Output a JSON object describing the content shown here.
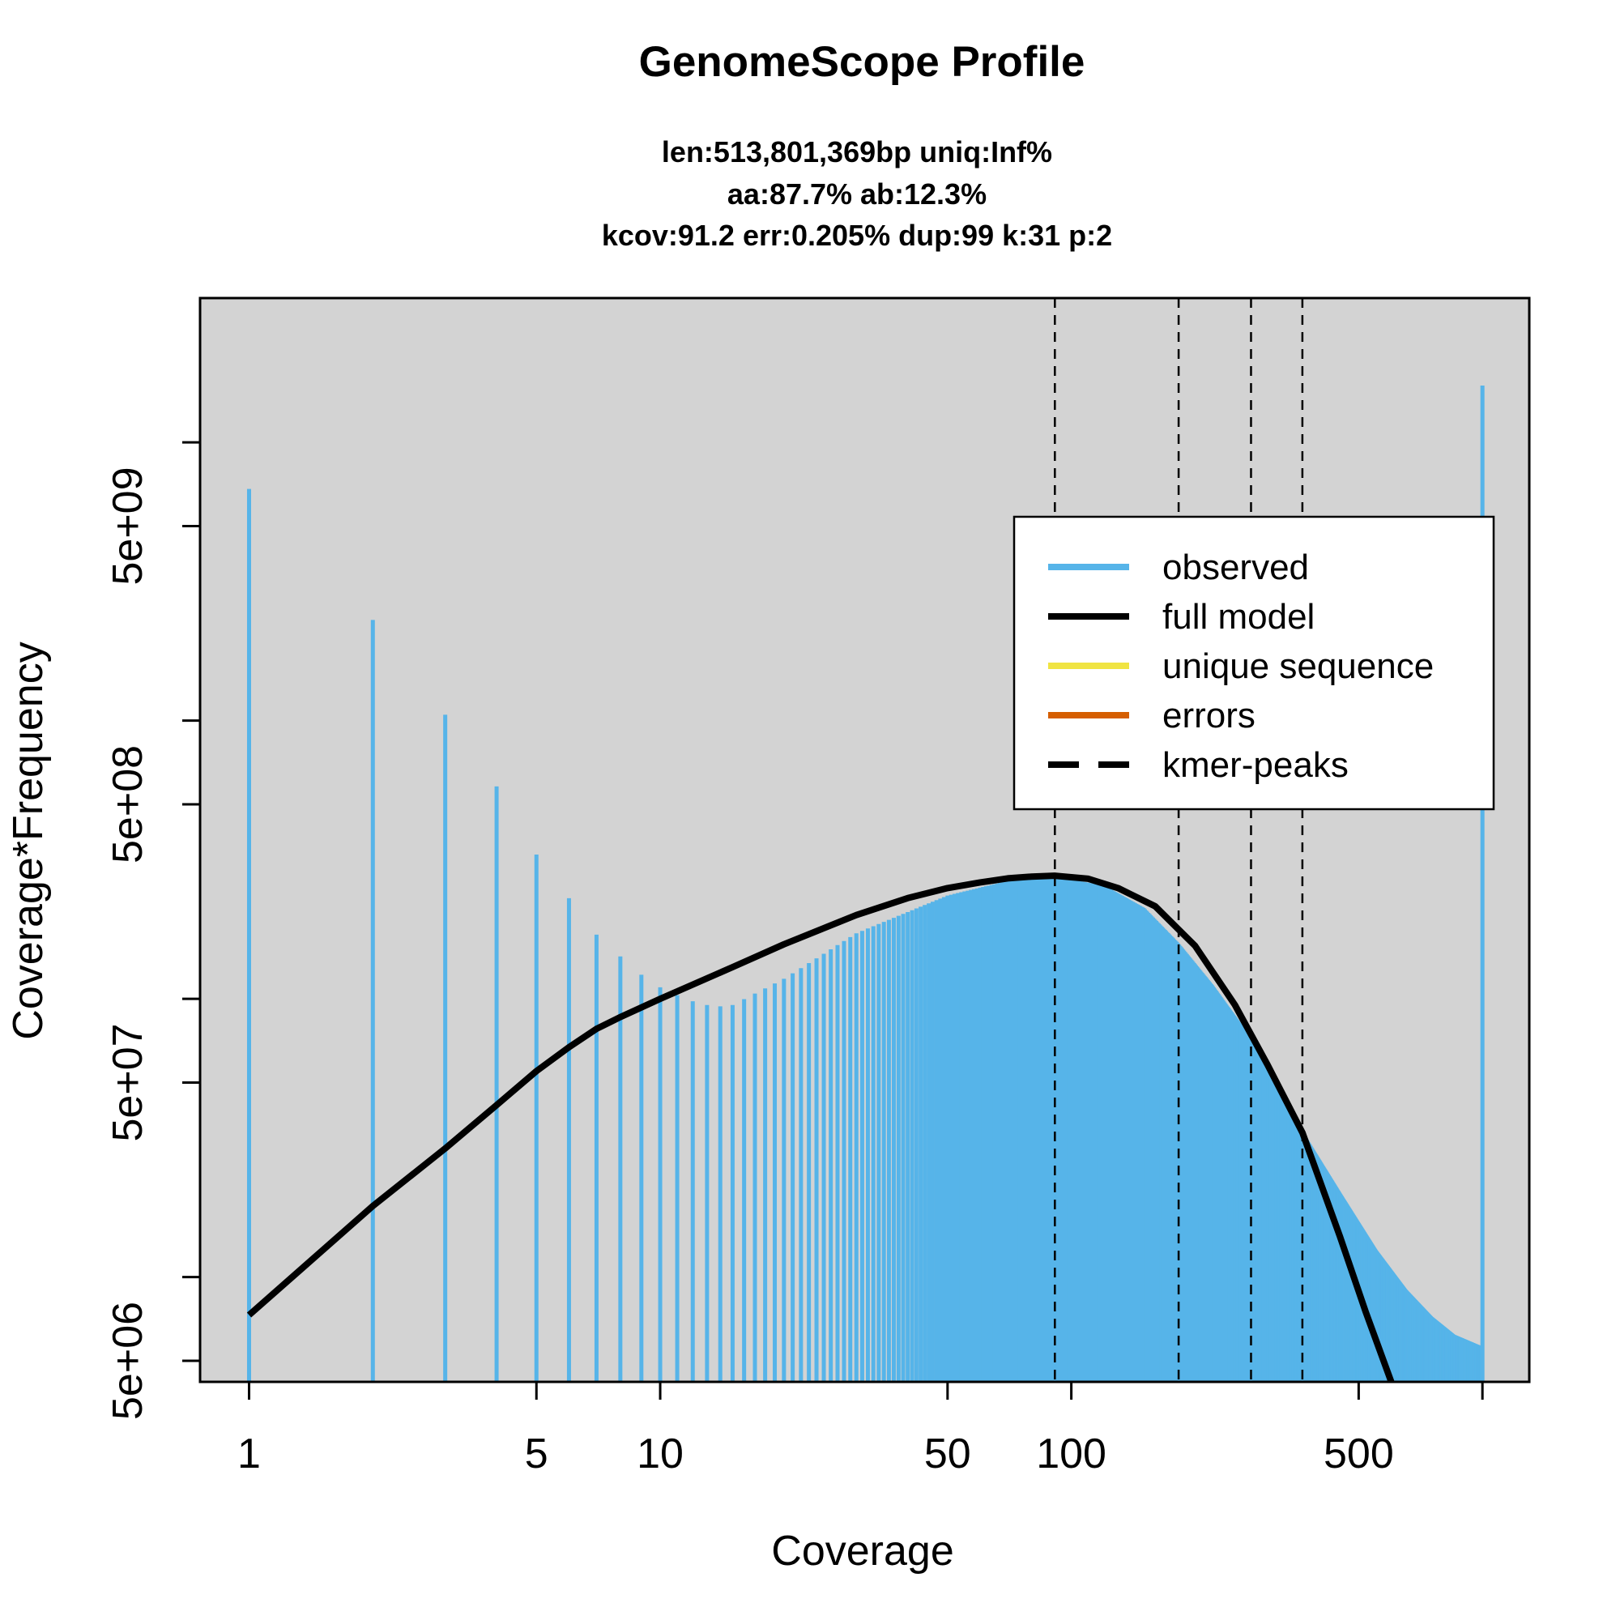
{
  "chart_data": {
    "type": "line",
    "title": "GenomeScope Profile",
    "subtitle_lines": [
      "len:513,801,369bp uniq:Inf%",
      "aa:87.7% ab:12.3%",
      "kcov:91.2 err:0.205%  dup:99  k:31 p:2"
    ],
    "xlabel": "Coverage",
    "ylabel": "Coverage*Frequency",
    "x_scale": "log",
    "y_scale": "log",
    "xlim": [
      0.76,
      1300
    ],
    "ylim": [
      4200000.0,
      33000000000.0
    ],
    "x_ticks": [
      {
        "value": 1,
        "label": "1"
      },
      {
        "value": 5,
        "label": "5"
      },
      {
        "value": 10,
        "label": "10"
      },
      {
        "value": 50,
        "label": "50"
      },
      {
        "value": 100,
        "label": "100"
      },
      {
        "value": 500,
        "label": "500"
      },
      {
        "value": 1000,
        "label": ""
      }
    ],
    "y_ticks": [
      {
        "value": 5000000.0,
        "label": "5e+06"
      },
      {
        "value": 10000000.0,
        "label": ""
      },
      {
        "value": 50000000.0,
        "label": "5e+07"
      },
      {
        "value": 100000000.0,
        "label": ""
      },
      {
        "value": 500000000.0,
        "label": "5e+08"
      },
      {
        "value": 1000000000.0,
        "label": ""
      },
      {
        "value": 5000000000.0,
        "label": "5e+09"
      },
      {
        "value": 10000000000.0,
        "label": ""
      }
    ],
    "kmer_peaks": [
      91.2,
      182.4,
      273.6,
      364.8
    ],
    "observed": {
      "name": "observed",
      "color": "#56B4E9",
      "points": [
        [
          1,
          6800000000.0
        ],
        [
          2,
          2300000000.0
        ],
        [
          3,
          1050000000.0
        ],
        [
          4,
          580000000.0
        ],
        [
          5,
          330000000.0
        ],
        [
          6,
          230000000.0
        ],
        [
          7,
          170000000.0
        ],
        [
          8,
          142000000.0
        ],
        [
          9,
          122000000.0
        ],
        [
          10,
          110000000.0
        ],
        [
          11,
          103000000.0
        ],
        [
          12,
          98000000.0
        ],
        [
          13,
          95000000.0
        ],
        [
          14,
          94000000.0
        ],
        [
          15,
          95000000.0
        ],
        [
          20,
          118000000.0
        ],
        [
          30,
          172000000.0
        ],
        [
          50,
          235000000.0
        ],
        [
          70,
          265000000.0
        ],
        [
          91,
          275000000.0
        ],
        [
          120,
          255000000.0
        ],
        [
          150,
          212000000.0
        ],
        [
          182,
          158000000.0
        ],
        [
          220,
          112000000.0
        ],
        [
          273,
          72000000.0
        ],
        [
          320,
          48000000.0
        ],
        [
          365,
          33000000.0
        ],
        [
          450,
          20000000.0
        ],
        [
          550,
          12500000.0
        ],
        [
          650,
          9000000.0
        ],
        [
          750,
          7200000.0
        ],
        [
          850,
          6200000.0
        ],
        [
          999,
          5600000.0
        ],
        [
          1000,
          16000000000.0
        ]
      ]
    },
    "full_model": {
      "name": "full model",
      "color": "#000000",
      "points": [
        [
          1,
          7300000.0
        ],
        [
          2,
          18000000.0
        ],
        [
          3,
          29000000.0
        ],
        [
          4,
          41500000.0
        ],
        [
          5,
          55000000.0
        ],
        [
          6,
          67000000.0
        ],
        [
          7,
          78000000.0
        ],
        [
          8,
          86000000.0
        ],
        [
          10,
          100000000.0
        ],
        [
          15,
          130000000.0
        ],
        [
          20,
          157000000.0
        ],
        [
          30,
          200000000.0
        ],
        [
          40,
          230000000.0
        ],
        [
          50,
          250000000.0
        ],
        [
          60,
          262000000.0
        ],
        [
          70,
          271000000.0
        ],
        [
          80,
          275000000.0
        ],
        [
          91,
          277000000.0
        ],
        [
          110,
          270000000.0
        ],
        [
          130,
          250000000.0
        ],
        [
          160,
          215000000.0
        ],
        [
          200,
          155000000.0
        ],
        [
          250,
          95000000.0
        ],
        [
          300,
          58000000.0
        ],
        [
          365,
          33000000.0
        ],
        [
          450,
          14000000.0
        ],
        [
          520,
          7500000.0
        ],
        [
          600,
          4200000.0
        ]
      ]
    },
    "legend": {
      "position": "top-right",
      "entries": [
        {
          "label": "observed",
          "color": "#56B4E9",
          "style": "solid"
        },
        {
          "label": "full model",
          "color": "#000000",
          "style": "solid"
        },
        {
          "label": "unique sequence",
          "color": "#F0E442",
          "style": "solid"
        },
        {
          "label": "errors",
          "color": "#D55E00",
          "style": "solid"
        },
        {
          "label": "kmer-peaks",
          "color": "#000000",
          "style": "dashed"
        }
      ]
    },
    "panel_background": "#D3D3D3"
  }
}
